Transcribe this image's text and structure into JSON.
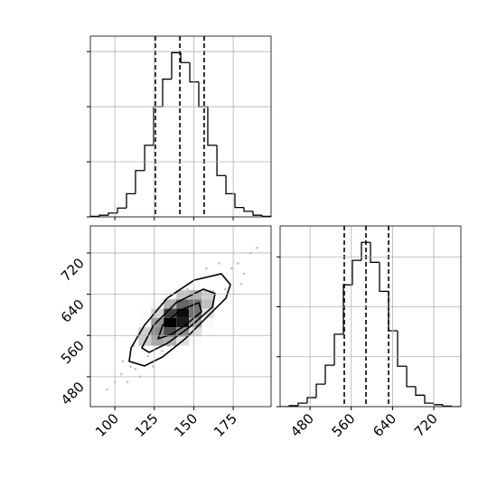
{
  "chart_data": [
    {
      "type": "histogram",
      "bins": [
        84.5,
        90.2,
        96,
        101.7,
        107.4,
        113.1,
        118.9,
        124.6,
        130.3,
        136,
        141.8,
        147.5,
        153.2,
        158.9,
        164.7,
        170.4,
        176.1,
        181.8,
        187.6,
        193.3,
        199
      ],
      "values": [
        1,
        3,
        7,
        16,
        42,
        84,
        130,
        200,
        250,
        298,
        280,
        245,
        200,
        130,
        75,
        42,
        17,
        10,
        3,
        1
      ],
      "color": "#000000",
      "xlim": [
        84.5,
        199
      ],
      "ylim": [
        0,
        328
      ],
      "xticks": [
        100,
        125,
        150,
        175
      ],
      "yticks": [
        0,
        100,
        200,
        300
      ],
      "quantiles": [
        125.7,
        141.2,
        156.6
      ],
      "grid": true,
      "show_xtick_labels": false
    },
    {
      "type": "contour",
      "xlim": [
        84.5,
        199
      ],
      "ylim": [
        422,
        772.5
      ],
      "xticks": [
        100,
        125,
        150,
        175
      ],
      "yticks": [
        480,
        560,
        640,
        720
      ],
      "grid": true,
      "show_xtick_labels": true,
      "points": {
        "x": [
          95,
          100,
          104,
          108,
          110,
          113,
          116,
          118,
          121,
          124,
          127,
          130,
          134,
          138,
          142,
          146,
          150,
          154,
          158,
          162,
          166,
          170,
          174,
          178,
          182,
          186,
          190,
          105,
          112,
          180
        ],
        "y": [
          455,
          470,
          485,
          470,
          500,
          495,
          480,
          560,
          520,
          500,
          575,
          530,
          540,
          630,
          560,
          650,
          580,
          640,
          690,
          620,
          700,
          650,
          690,
          700,
          680,
          720,
          730,
          510,
          540,
          660
        ]
      },
      "density": {
        "xedges": [
          115,
          123,
          131,
          139,
          147,
          155,
          163
        ],
        "yedges": [
          540,
          558,
          576,
          594,
          612,
          630,
          648
        ],
        "counts": [
          [
            20,
            35,
            30,
            12,
            3,
            0
          ],
          [
            18,
            45,
            70,
            45,
            12,
            2
          ],
          [
            6,
            40,
            100,
            90,
            35,
            5
          ],
          [
            2,
            18,
            75,
            95,
            55,
            12
          ],
          [
            0,
            5,
            30,
            60,
            55,
            25
          ],
          [
            0,
            1,
            8,
            22,
            30,
            18
          ]
        ]
      },
      "contours": [
        {
          "x": [
            109.1,
            110.3,
            118.8,
            133.2,
            150.3,
            167.5,
            173.2,
            170.4,
            158.9,
            144.6,
            130.3,
            118.8
          ],
          "y": [
            509.8,
            536.1,
            579.9,
            632.4,
            667.4,
            679.7,
            658.7,
            632.4,
            597.4,
            553.6,
            518.6,
            501.0
          ]
        },
        {
          "x": [
            117.1,
            124.6,
            138.9,
            156.1,
            163.5,
            161.8,
            147.5,
            133.2,
            121.7
          ],
          "y": [
            536.1,
            579.9,
            623.6,
            649.9,
            641.2,
            614.9,
            576.4,
            544.8,
            527.3
          ]
        },
        {
          "x": [
            127.4,
            130.3,
            141.7,
            153.2,
            154.9,
            144.6,
            136.0
          ],
          "y": [
            553.6,
            579.9,
            609.6,
            623.6,
            606.1,
            579.9,
            562.3
          ]
        }
      ]
    },
    {
      "type": "histogram",
      "bins": [
        422,
        439.5,
        457.1,
        474.6,
        492.1,
        509.6,
        527.2,
        544.7,
        562.2,
        579.7,
        597.3,
        614.8,
        632.3,
        649.8,
        667.4,
        684.9,
        702.4,
        719.9,
        737.5,
        755,
        772.5
      ],
      "values": [
        0,
        2,
        7,
        18,
        45,
        83,
        145,
        244,
        293,
        329,
        289,
        231,
        152,
        81,
        40,
        23,
        7,
        4,
        1,
        0
      ],
      "color": "#000000",
      "xlim": [
        422,
        772.5
      ],
      "ylim": [
        0,
        362
      ],
      "xticks": [
        480,
        560,
        640,
        720
      ],
      "yticks": [
        0,
        100,
        200,
        300
      ],
      "quantiles": [
        546.4,
        588.5,
        632.3
      ],
      "grid": true,
      "show_xtick_labels": true
    }
  ]
}
